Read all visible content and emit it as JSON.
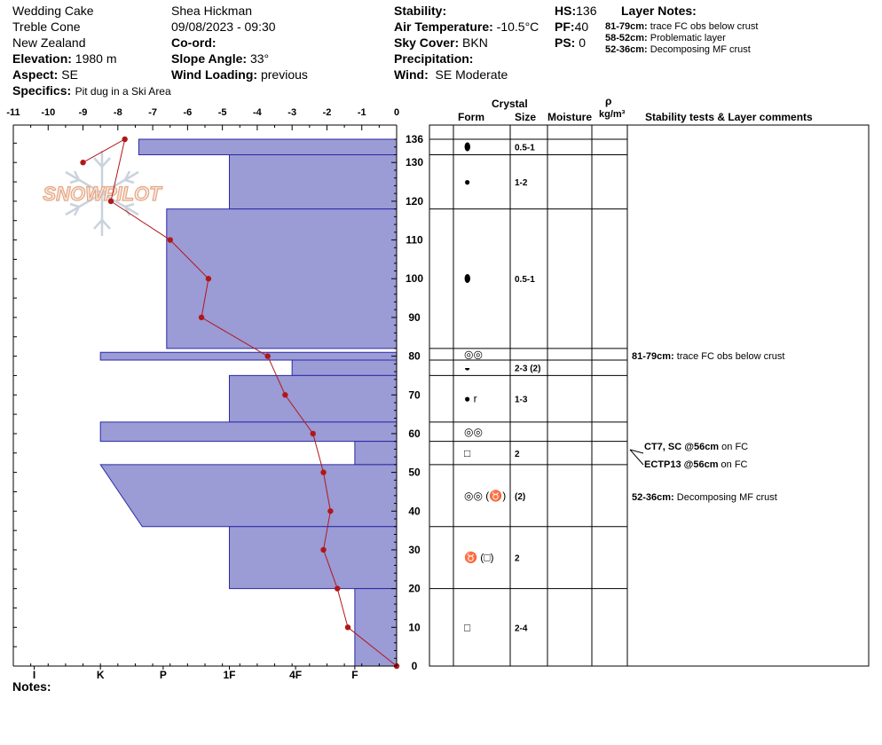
{
  "header": {
    "location": "Wedding Cake",
    "area": "Treble Cone",
    "country": "New Zealand",
    "elevation_label": "Elevation:",
    "elevation": "1980 m",
    "aspect_label": "Aspect:",
    "aspect": "SE",
    "specifics_label": "Specifics:",
    "specifics": "Pit dug in a Ski Area",
    "observer": "Shea Hickman",
    "datetime": "09/08/2023 - 09:30",
    "coord_label": "Co-ord:",
    "slope_label": "Slope Angle:",
    "slope": "33°",
    "wind_loading_label": "Wind Loading:",
    "wind_loading": "previous",
    "stability_label": "Stability:",
    "air_temp_label": "Air Temperature:",
    "air_temp": "-10.5°C",
    "sky_label": "Sky Cover:",
    "sky": "BKN",
    "precip_label": "Precipitation:",
    "wind_label": "Wind:",
    "wind": "SE Moderate",
    "hs_label": "HS:",
    "hs": "136",
    "pf_label": "PF:",
    "pf": "40",
    "ps_label": "PS:",
    "ps": "0"
  },
  "layer_notes": {
    "title": "Layer Notes:",
    "items": [
      {
        "range": "81-79cm:",
        "text": "trace FC obs below crust"
      },
      {
        "range": "58-52cm:",
        "text": "Problematic layer"
      },
      {
        "range": "52-36cm:",
        "text": "Decomposing MF crust"
      }
    ]
  },
  "logo_text": "SNOWPILOT",
  "notes_label": "Notes:",
  "columns": {
    "crystal": "Crystal",
    "form": "Form",
    "size": "Size",
    "moisture": "Moisture",
    "rho": "ρ",
    "density_unit": "kg/m³",
    "comments": "Stability tests & Layer comments"
  },
  "chart_data": {
    "type": "snow-profile",
    "temp_axis": {
      "min": -11,
      "max": 0,
      "ticks": [
        -11,
        -10,
        -9,
        -8,
        -7,
        -6,
        -5,
        -4,
        -3,
        -2,
        -1,
        0
      ]
    },
    "depth_axis": {
      "min": 0,
      "max": 136,
      "ticks": [
        0,
        10,
        20,
        30,
        40,
        50,
        60,
        70,
        80,
        90,
        100,
        110,
        120,
        130,
        136
      ]
    },
    "hardness_axis": {
      "labels": [
        "I",
        "K",
        "P",
        "1F",
        "4F",
        "F"
      ],
      "temp_at_label": [
        -10.4,
        -8.5,
        -6.7,
        -4.8,
        -2.9,
        -1.2
      ]
    },
    "temperature_profile": [
      {
        "depth": 130,
        "temp": -9.0
      },
      {
        "depth": 136,
        "temp": -7.8
      },
      {
        "depth": 120,
        "temp": -8.2
      },
      {
        "depth": 110,
        "temp": -6.5
      },
      {
        "depth": 100,
        "temp": -5.4
      },
      {
        "depth": 90,
        "temp": -5.6
      },
      {
        "depth": 80,
        "temp": -3.7
      },
      {
        "depth": 70,
        "temp": -3.2
      },
      {
        "depth": 60,
        "temp": -2.4
      },
      {
        "depth": 50,
        "temp": -2.1
      },
      {
        "depth": 40,
        "temp": -1.9
      },
      {
        "depth": 30,
        "temp": -2.1
      },
      {
        "depth": 20,
        "temp": -1.7
      },
      {
        "depth": 10,
        "temp": -1.4
      },
      {
        "depth": 0,
        "temp": 0.0
      }
    ],
    "hardness_layers": [
      {
        "top": 136,
        "bottom": 132,
        "top_hardness_temp": -7.4,
        "bottom_hardness_temp": -7.4
      },
      {
        "top": 132,
        "bottom": 118,
        "top_hardness_temp": -4.8,
        "bottom_hardness_temp": -4.8
      },
      {
        "top": 118,
        "bottom": 82,
        "top_hardness_temp": -6.6,
        "bottom_hardness_temp": -6.6
      },
      {
        "top": 81,
        "bottom": 79,
        "top_hardness_temp": -8.5,
        "bottom_hardness_temp": -8.5
      },
      {
        "top": 79,
        "bottom": 75,
        "top_hardness_temp": -3.0,
        "bottom_hardness_temp": -3.0
      },
      {
        "top": 75,
        "bottom": 63,
        "top_hardness_temp": -4.8,
        "bottom_hardness_temp": -4.8
      },
      {
        "top": 63,
        "bottom": 58,
        "top_hardness_temp": -8.5,
        "bottom_hardness_temp": -8.5
      },
      {
        "top": 58,
        "bottom": 52,
        "top_hardness_temp": -1.2,
        "bottom_hardness_temp": -1.2
      },
      {
        "top": 52,
        "bottom": 36,
        "top_hardness_temp": -8.5,
        "bottom_hardness_temp": -7.3
      },
      {
        "top": 36,
        "bottom": 20,
        "top_hardness_temp": -4.8,
        "bottom_hardness_temp": -4.8
      },
      {
        "top": 20,
        "bottom": 0,
        "top_hardness_temp": -1.2,
        "bottom_hardness_temp": -1.2
      }
    ],
    "layers": [
      {
        "top": 136,
        "bottom": 132,
        "form": "⬮",
        "size": "0.5-1"
      },
      {
        "top": 132,
        "bottom": 118,
        "form": "●",
        "size": "1-2"
      },
      {
        "top": 118,
        "bottom": 82,
        "form": "⬮",
        "size": "0.5-1"
      },
      {
        "top": 82,
        "bottom": 79,
        "form": "◎◎",
        "size": ""
      },
      {
        "top": 79,
        "bottom": 75,
        "form": "◒",
        "size": "2-3 (2)"
      },
      {
        "top": 75,
        "bottom": 63,
        "form": "● r",
        "size": "1-3"
      },
      {
        "top": 63,
        "bottom": 58,
        "form": "◎◎",
        "size": ""
      },
      {
        "top": 58,
        "bottom": 52,
        "form": "□",
        "size": "2"
      },
      {
        "top": 52,
        "bottom": 36,
        "form": "◎◎ (♉)",
        "size": "(2)"
      },
      {
        "top": 36,
        "bottom": 20,
        "form": "♉ (□)",
        "size": "2"
      },
      {
        "top": 20,
        "bottom": 0,
        "form": "□",
        "size": "2-4"
      }
    ],
    "comments": [
      {
        "depth": 80,
        "label": "81-79cm:",
        "text": "trace FC obs below crust"
      },
      {
        "depth": 56,
        "label": "CT7, SC @56cm",
        "text": "on FC"
      },
      {
        "depth": 56,
        "label": "ECTP13 @56cm",
        "text": "on FC"
      },
      {
        "depth": 44,
        "label": "52-36cm:",
        "text": "Decomposing MF crust"
      }
    ]
  }
}
